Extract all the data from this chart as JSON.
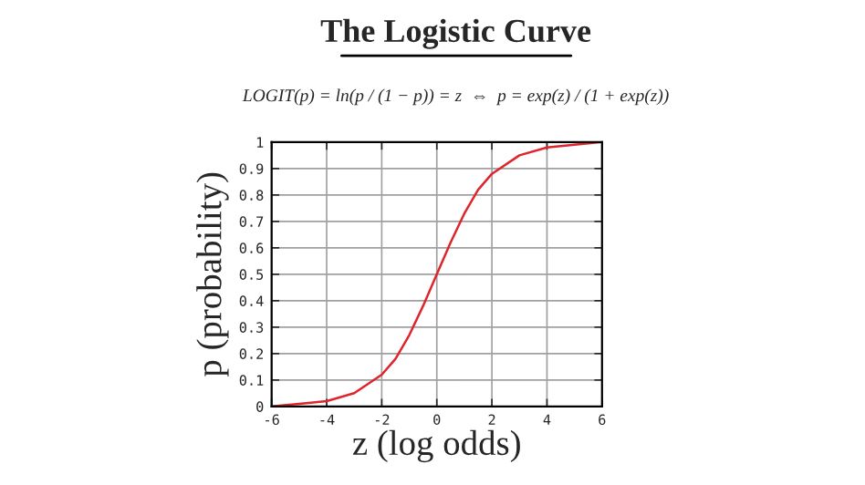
{
  "chart_data": {
    "type": "line",
    "title": "The Logistic Curve",
    "subtitle": "LOGIT(p) = ln(p / (1 − p)) = z  ⇔  p = exp(z) / (1 + exp(z))",
    "xlabel": "z (log odds)",
    "ylabel": "p (probability)",
    "x": [
      -6,
      -5,
      -4,
      -3,
      -2,
      -1.5,
      -1,
      -0.5,
      0,
      0.5,
      1,
      1.5,
      2,
      3,
      4,
      5,
      6
    ],
    "series": [
      {
        "color": "#e0242c",
        "values": [
          0,
          0.01,
          0.02,
          0.05,
          0.12,
          0.18,
          0.27,
          0.38,
          0.5,
          0.62,
          0.73,
          0.82,
          0.88,
          0.95,
          0.98,
          0.99,
          1
        ]
      }
    ],
    "xlim": [
      -6,
      6
    ],
    "xticks": [
      -6,
      -4,
      -2,
      0,
      2,
      4,
      6
    ],
    "ylim": [
      0,
      1
    ],
    "yticks": [
      0,
      0.1,
      0.2,
      0.3,
      0.4,
      0.5,
      0.6,
      0.7,
      0.8,
      0.9,
      1
    ],
    "grid": true,
    "marker": "none",
    "line_style": "solid"
  }
}
